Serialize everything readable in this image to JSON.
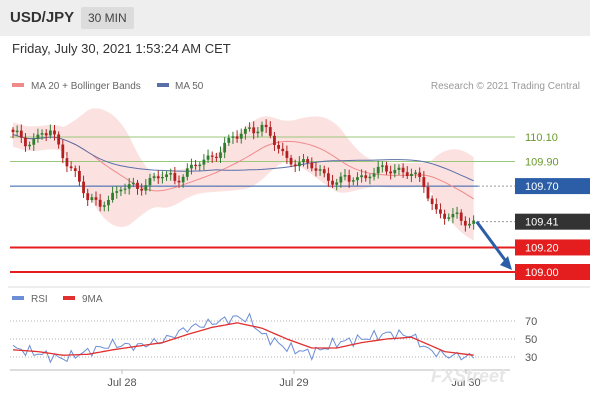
{
  "header": {
    "symbol": "USD/JPY",
    "timeframe": "30 MIN",
    "datetime": "Friday, July 30, 2021 1:53:24 AM CET"
  },
  "legend": {
    "ma20": "MA 20 + Bollinger Bands",
    "ma50": "MA 50",
    "credit": "Research © 2021 Trading Central"
  },
  "rsi_legend": {
    "rsi": "RSI",
    "ma": "9MA"
  },
  "watermark": "FXStreet",
  "colors": {
    "bull": "#2f7d2f",
    "bear": "#b51f1f",
    "bands": "#f9c8c8",
    "ma20": "#f08a8a",
    "ma50": "#5a6ea8",
    "resistance": "#9bc77a",
    "resistance_label": "#6a9a2e",
    "support": "#e41e1e",
    "pivot": "#2c5ea8",
    "current": "#333333",
    "rsi": "#6b8ed6",
    "rsi_ma": "#e03030"
  },
  "chart_data": [
    {
      "type": "candlestick",
      "title": "",
      "ylim": [
        108.9,
        110.3
      ],
      "x_labels": [
        "Jul 28",
        "Jul 29",
        "Jul 30"
      ],
      "levels": [
        {
          "label": "110.10",
          "value": 110.1,
          "kind": "resistance"
        },
        {
          "label": "109.90",
          "value": 109.9,
          "kind": "resistance"
        },
        {
          "label": "109.70",
          "value": 109.7,
          "kind": "pivot"
        },
        {
          "label": "109.41",
          "value": 109.41,
          "kind": "current"
        },
        {
          "label": "109.20",
          "value": 109.2,
          "kind": "support"
        },
        {
          "label": "109.00",
          "value": 109.0,
          "kind": "support"
        }
      ],
      "anchors": [
        [
          0,
          110.12
        ],
        [
          3,
          110.06
        ],
        [
          6,
          110.1
        ],
        [
          9,
          110.14
        ],
        [
          12,
          109.96
        ],
        [
          15,
          109.8
        ],
        [
          18,
          109.58
        ],
        [
          21,
          109.56
        ],
        [
          24,
          109.62
        ],
        [
          27,
          109.68
        ],
        [
          30,
          109.7
        ],
        [
          33,
          109.74
        ],
        [
          36,
          109.78
        ],
        [
          39,
          109.76
        ],
        [
          42,
          109.82
        ],
        [
          45,
          109.88
        ],
        [
          48,
          109.95
        ],
        [
          51,
          110.03
        ],
        [
          54,
          110.1
        ],
        [
          57,
          110.17
        ],
        [
          60,
          110.18
        ],
        [
          63,
          110.05
        ],
        [
          66,
          109.93
        ],
        [
          69,
          109.88
        ],
        [
          72,
          109.86
        ],
        [
          75,
          109.8
        ],
        [
          78,
          109.72
        ],
        [
          81,
          109.75
        ],
        [
          84,
          109.78
        ],
        [
          87,
          109.8
        ],
        [
          90,
          109.83
        ],
        [
          93,
          109.84
        ],
        [
          96,
          109.8
        ],
        [
          99,
          109.7
        ],
        [
          102,
          109.5
        ],
        [
          105,
          109.44
        ],
        [
          108,
          109.42
        ],
        [
          111,
          109.41
        ]
      ],
      "target": 109.0
    },
    {
      "type": "line",
      "title": "",
      "ylim": [
        15,
        85
      ],
      "yticks": [
        30,
        50,
        70
      ],
      "series": [
        {
          "name": "RSI",
          "anchors": [
            [
              0,
              40
            ],
            [
              6,
              34
            ],
            [
              12,
              28
            ],
            [
              18,
              36
            ],
            [
              24,
              44
            ],
            [
              30,
              42
            ],
            [
              36,
              48
            ],
            [
              42,
              62
            ],
            [
              48,
              68
            ],
            [
              54,
              74
            ],
            [
              57,
              72
            ],
            [
              60,
              55
            ],
            [
              66,
              40
            ],
            [
              72,
              34
            ],
            [
              78,
              46
            ],
            [
              84,
              50
            ],
            [
              90,
              56
            ],
            [
              96,
              54
            ],
            [
              100,
              38
            ],
            [
              104,
              32
            ],
            [
              111,
              30
            ]
          ]
        },
        {
          "name": "9MA",
          "anchors": [
            [
              0,
              38
            ],
            [
              6,
              36
            ],
            [
              12,
              32
            ],
            [
              18,
              33
            ],
            [
              24,
              38
            ],
            [
              30,
              42
            ],
            [
              36,
              46
            ],
            [
              42,
              55
            ],
            [
              48,
              63
            ],
            [
              54,
              68
            ],
            [
              60,
              62
            ],
            [
              66,
              50
            ],
            [
              72,
              40
            ],
            [
              78,
              40
            ],
            [
              84,
              46
            ],
            [
              90,
              50
            ],
            [
              96,
              52
            ],
            [
              100,
              44
            ],
            [
              104,
              36
            ],
            [
              111,
              32
            ]
          ]
        }
      ]
    }
  ]
}
